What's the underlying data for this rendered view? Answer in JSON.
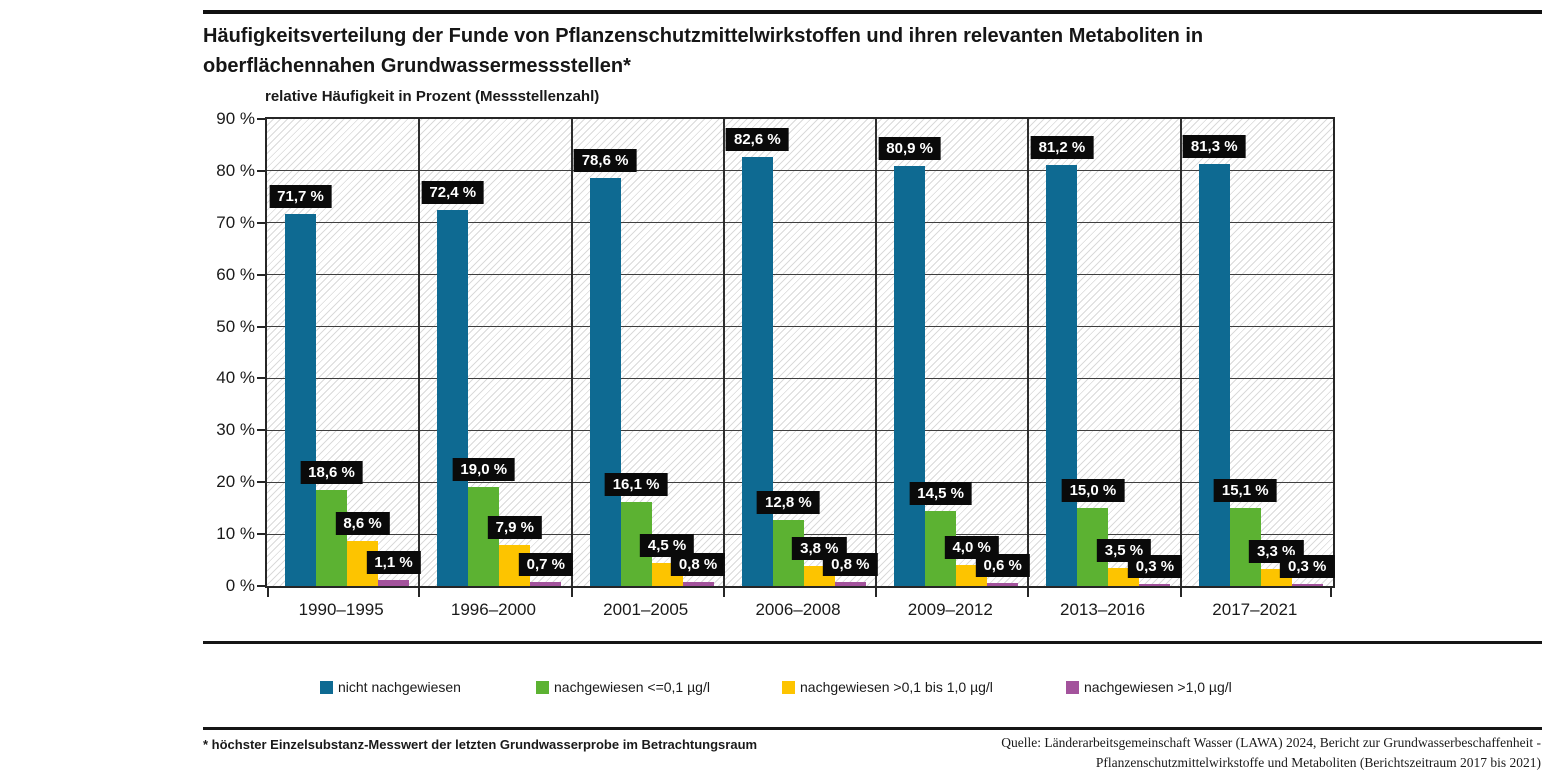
{
  "page": {
    "title": "Häufigkeitsverteilung der Funde von Pflanzenschutzmittelwirkstoffen und ihren relevanten Metaboliten in oberflächennahen Grundwassermessstellen*",
    "footnote": "* höchster Einzelsubstanz-Messwert der letzten Grundwasserprobe im Betrachtungsraum",
    "source_line1": "Quelle: Länderarbeitsgemeinschaft Wasser (LAWA) 2024, Bericht zur Grundwasserbeschaffenheit -",
    "source_line2": "Pflanzenschutzmittelwirkstoffe und Metaboliten (Berichtszeitraum 2017 bis 2021)"
  },
  "chart_data": {
    "type": "bar",
    "title": "Häufigkeitsverteilung der Funde von Pflanzenschutzmittelwirkstoffen und ihren relevanten Metaboliten in oberflächennahen Grundwassermessstellen*",
    "ylabel": "relative Häufigkeit in Prozent (Messstellenzahl)",
    "xlabel": "",
    "ylim": [
      0,
      90
    ],
    "ytick_step": 10,
    "ytick_labels": [
      "0 %",
      "10 %",
      "20 %",
      "30 %",
      "40 %",
      "50 %",
      "60 %",
      "70 %",
      "80 %",
      "90 %"
    ],
    "grid": true,
    "plot_background": "diagonal-hatch",
    "legend_position": "bottom",
    "categories": [
      "1990–1995",
      "1996–2000",
      "2001–2005",
      "2006–2008",
      "2009–2012",
      "2013–2016",
      "2017–2021"
    ],
    "series": [
      {
        "name": "nicht nachgewiesen",
        "color": "#0e6a92",
        "values": [
          71.7,
          72.4,
          78.6,
          82.6,
          80.9,
          81.2,
          81.3
        ],
        "value_labels": [
          "71,7 %",
          "72,4 %",
          "78,6 %",
          "82,6 %",
          "80,9 %",
          "81,2 %",
          "81,3 %"
        ]
      },
      {
        "name": "nachgewiesen <=0,1 µg/l",
        "color": "#5cb232",
        "values": [
          18.6,
          19.0,
          16.1,
          12.8,
          14.5,
          15.0,
          15.1
        ],
        "value_labels": [
          "18,6 %",
          "19,0 %",
          "16,1 %",
          "12,8 %",
          "14,5 %",
          "15,0 %",
          "15,1 %"
        ]
      },
      {
        "name": "nachgewiesen >0,1 bis 1,0 µg/l",
        "color": "#fdc400",
        "values": [
          8.6,
          7.9,
          4.5,
          3.8,
          4.0,
          3.5,
          3.3
        ],
        "value_labels": [
          "8,6 %",
          "7,9 %",
          "4,5 %",
          "3,8 %",
          "4,0 %",
          "3,5 %",
          "3,3 %"
        ]
      },
      {
        "name": "nachgewiesen >1,0 µg/l",
        "color": "#a3539c",
        "values": [
          1.1,
          0.7,
          0.8,
          0.8,
          0.6,
          0.3,
          0.3
        ],
        "value_labels": [
          "1,1 %",
          "0,7 %",
          "0,8 %",
          "0,8 %",
          "0,6 %",
          "0,3 %",
          "0,3 %"
        ]
      }
    ]
  }
}
